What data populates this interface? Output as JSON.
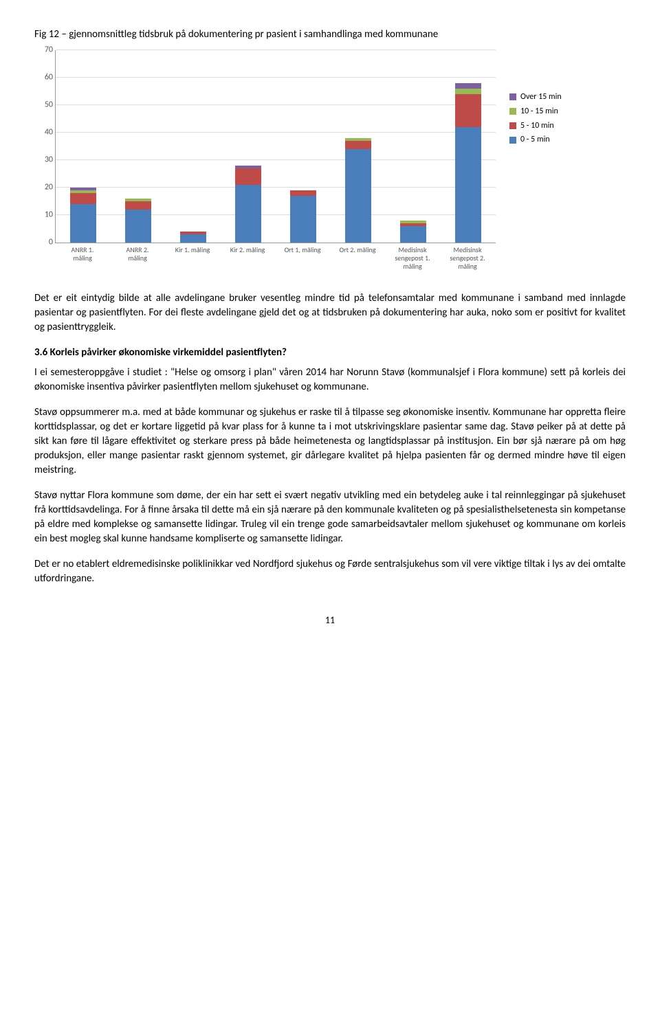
{
  "fig_title": "Fig 12 – gjennomsnittleg tidsbruk på dokumentering pr pasient i samhandlinga med kommunane",
  "chart": {
    "type": "stacked-bar",
    "ymax": 70,
    "ytick_step": 10,
    "yticks": [
      0,
      10,
      20,
      30,
      40,
      50,
      60,
      70
    ],
    "categories": [
      "ANRR 1. måling",
      "ANRR 2. måling",
      "Kir 1. måling",
      "Kir 2. måling",
      "Ort 1, måling",
      "Ort 2. måling",
      "Medisinsk sengepost 1. måling",
      "Medisinsk sengepost 2. måling"
    ],
    "series": [
      {
        "name": "0 - 5 min",
        "color": "#4a7ebb"
      },
      {
        "name": "5 - 10 min",
        "color": "#be4b48"
      },
      {
        "name": "10 - 15 min",
        "color": "#98b954"
      },
      {
        "name": "Over 15 min",
        "color": "#7d60a0"
      }
    ],
    "legend_order": [
      "Over 15 min",
      "10 - 15 min",
      "5 - 10 min",
      "0 - 5 min"
    ],
    "data": [
      [
        14,
        4,
        1,
        1
      ],
      [
        12,
        3,
        1,
        0
      ],
      [
        3,
        1,
        0,
        0
      ],
      [
        21,
        6,
        0,
        1
      ],
      [
        17,
        2,
        0,
        0
      ],
      [
        34,
        3,
        1,
        0
      ],
      [
        6,
        1,
        1,
        0
      ],
      [
        42,
        12,
        2,
        2
      ]
    ],
    "grid_color": "#dddddd",
    "axis_color": "#999999",
    "label_fontsize": 10
  },
  "para1": "Det er eit eintydig bilde at alle avdelingane bruker vesentleg mindre tid på telefonsamtalar med kommunane i samband med innlagde pasientar og pasientflyten. For dei fleste avdelingane gjeld det og at tidsbruken på dokumentering har auka, noko som er positivt for kvalitet og pasienttryggleik.",
  "heading": "3.6  Korleis påvirker økonomiske virkemiddel pasientflyten?",
  "para2": "I ei semesteroppgåve i studiet : \"Helse og omsorg i plan\" våren 2014 har Norunn Stavø (kommunalsjef i Flora kommune)  sett på korleis dei økonomiske insentiva påvirker pasientflyten mellom sjukehuset og kommunane.",
  "para3": "Stavø oppsummerer m.a. med at både kommunar og sjukehus er raske til å tilpasse seg økonomiske insentiv. Kommunane har oppretta fleire korttidsplassar, og det er kortare liggetid på kvar plass for å kunne ta i mot utskrivingsklare pasientar same dag. Stavø peiker på at dette på sikt kan føre til lågare effektivitet og sterkare press på både heimetenesta og langtidsplassar på institusjon. Ein bør sjå nærare på om høg produksjon, eller mange pasientar raskt gjennom systemet, gir dårlegare kvalitet på hjelpa pasienten får og dermed mindre høve til eigen meistring.",
  "para4": "Stavø nyttar Flora kommune som døme, der ein har sett ei svært negativ utvikling med ein betydeleg auke i tal reinnleggingar på sjukehuset frå korttidsavdelinga. For å finne årsaka til dette må ein sjå nærare på den kommunale kvaliteten og på spesialisthelsetenesta sin kompetanse på eldre med komplekse og samansette lidingar. Truleg vil ein trenge gode samarbeidsavtaler mellom sjukehuset og kommunane om korleis ein best mogleg skal kunne handsame kompliserte og samansette lidingar.",
  "para5": "Det er no etablert eldremedisinske poliklinikkar ved Nordfjord sjukehus og Førde sentralsjukehus som vil vere viktige tiltak i lys av dei omtalte utfordringane.",
  "pagenum": "11"
}
